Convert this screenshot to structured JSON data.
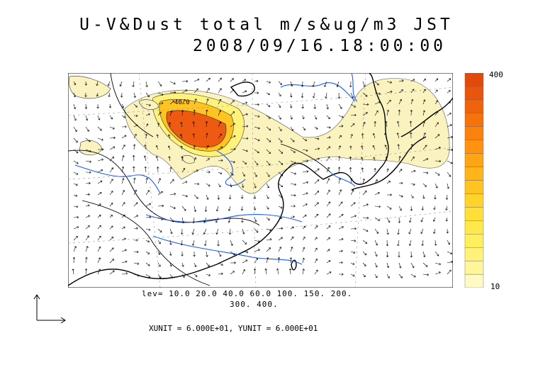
{
  "title": {
    "line1": "U-V&Dust total m/s&ug/m3 JST",
    "line2": "2008/09/16.18:00:00"
  },
  "colorbar": {
    "max_label": "400",
    "min_label": "10",
    "colors": [
      "#fff9c4",
      "#fff59a",
      "#fff27a",
      "#ffef5c",
      "#ffe94a",
      "#ffdf3a",
      "#ffd22c",
      "#ffc322",
      "#ffb41a",
      "#ffa414",
      "#ff9310",
      "#fb820e",
      "#f5720c",
      "#ef630c",
      "#e9550c",
      "#e24a0c"
    ],
    "levels": [
      10,
      20,
      40,
      60,
      100,
      150,
      200,
      300,
      400
    ]
  },
  "contour_legend": {
    "line1": "lev= 10.0 20.0 40.0 60.0 100. 150. 200.",
    "line2": "300. 400."
  },
  "units_text": "XUNIT = 6.000E+01, YUNIT = 6.000E+01",
  "contour_label": "40.0",
  "colors": {
    "coast": "#000000",
    "rivers": "#1a5cff",
    "grid": "#9a9a9a",
    "dust_low": "#fbf3bf",
    "dust_high": "#ef5a12"
  }
}
